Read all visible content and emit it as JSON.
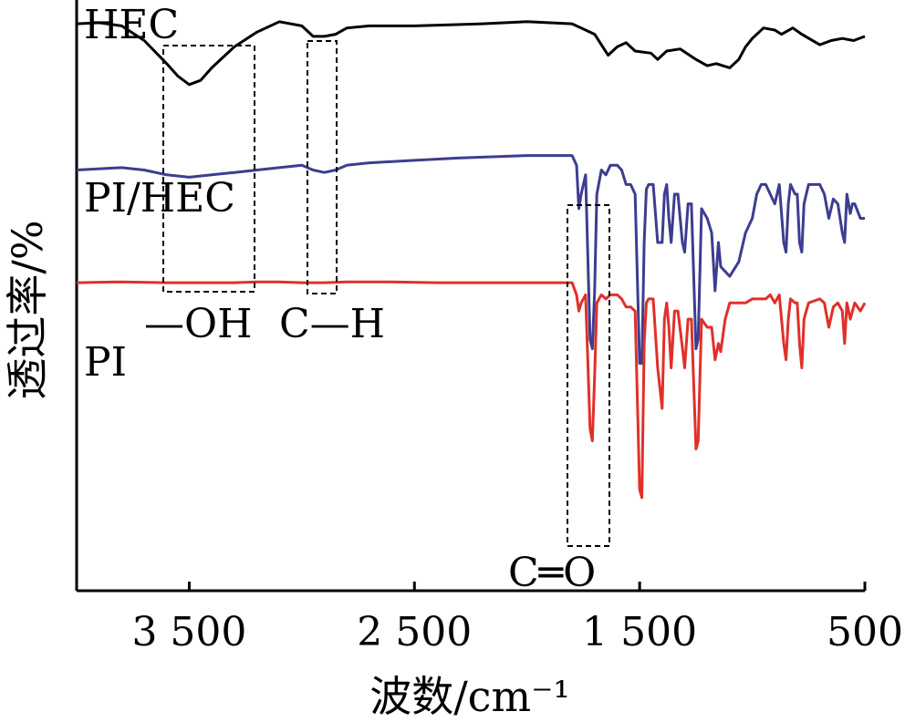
{
  "chart_data": {
    "type": "line",
    "xlabel": "波数/cm⁻¹",
    "ylabel": "透过率/%",
    "x_range": [
      4000,
      500
    ],
    "x_reversed": true,
    "grid": false,
    "x_ticks": [
      3500,
      2500,
      1500,
      500
    ],
    "x_tick_labels": [
      "3 500",
      "2 500",
      "1 500",
      "500"
    ],
    "y_units": "offset transmittance (no scale printed)",
    "series": [
      {
        "name": "HEC",
        "color": "#000000",
        "points": [
          [
            4000,
            93
          ],
          [
            3900,
            93.5
          ],
          [
            3800,
            92
          ],
          [
            3700,
            85
          ],
          [
            3600,
            74
          ],
          [
            3550,
            68
          ],
          [
            3500,
            64
          ],
          [
            3450,
            66
          ],
          [
            3400,
            72
          ],
          [
            3300,
            82
          ],
          [
            3200,
            89
          ],
          [
            3100,
            94
          ],
          [
            3000,
            92
          ],
          [
            2950,
            87
          ],
          [
            2900,
            87
          ],
          [
            2850,
            88
          ],
          [
            2800,
            91
          ],
          [
            2700,
            92
          ],
          [
            2500,
            92
          ],
          [
            2200,
            93
          ],
          [
            2000,
            94
          ],
          [
            1800,
            93
          ],
          [
            1700,
            88
          ],
          [
            1640,
            78
          ],
          [
            1600,
            82
          ],
          [
            1560,
            84
          ],
          [
            1520,
            80
          ],
          [
            1450,
            79
          ],
          [
            1420,
            76
          ],
          [
            1380,
            80
          ],
          [
            1320,
            81
          ],
          [
            1250,
            76
          ],
          [
            1200,
            73
          ],
          [
            1160,
            74
          ],
          [
            1100,
            72
          ],
          [
            1060,
            76
          ],
          [
            1030,
            82
          ],
          [
            1000,
            86
          ],
          [
            950,
            91
          ],
          [
            900,
            90
          ],
          [
            870,
            88
          ],
          [
            820,
            91
          ],
          [
            780,
            88
          ],
          [
            700,
            83
          ],
          [
            650,
            85
          ],
          [
            600,
            86
          ],
          [
            550,
            85
          ],
          [
            500,
            87
          ]
        ]
      },
      {
        "name": "PI/HEC",
        "color": "#3d3d91",
        "points": [
          [
            4000,
            95
          ],
          [
            3800,
            95.5
          ],
          [
            3700,
            95
          ],
          [
            3600,
            94
          ],
          [
            3500,
            93.5
          ],
          [
            3400,
            94
          ],
          [
            3300,
            94.5
          ],
          [
            3200,
            95
          ],
          [
            3100,
            95.5
          ],
          [
            3000,
            96
          ],
          [
            2950,
            95
          ],
          [
            2900,
            94.5
          ],
          [
            2850,
            95
          ],
          [
            2800,
            96
          ],
          [
            2700,
            96.5
          ],
          [
            2500,
            97
          ],
          [
            2300,
            97.5
          ],
          [
            2000,
            98
          ],
          [
            1800,
            98
          ],
          [
            1780,
            96
          ],
          [
            1770,
            87
          ],
          [
            1760,
            90
          ],
          [
            1740,
            94
          ],
          [
            1720,
            60
          ],
          [
            1710,
            58
          ],
          [
            1700,
            70
          ],
          [
            1690,
            90
          ],
          [
            1670,
            95
          ],
          [
            1650,
            94
          ],
          [
            1630,
            96
          ],
          [
            1600,
            96
          ],
          [
            1580,
            95
          ],
          [
            1560,
            92
          ],
          [
            1540,
            92
          ],
          [
            1520,
            90
          ],
          [
            1500,
            55
          ],
          [
            1490,
            55
          ],
          [
            1480,
            80
          ],
          [
            1470,
            91
          ],
          [
            1460,
            92
          ],
          [
            1440,
            92
          ],
          [
            1420,
            80
          ],
          [
            1400,
            80
          ],
          [
            1390,
            90
          ],
          [
            1380,
            92
          ],
          [
            1370,
            85
          ],
          [
            1360,
            80
          ],
          [
            1345,
            90
          ],
          [
            1330,
            90
          ],
          [
            1310,
            80
          ],
          [
            1300,
            78
          ],
          [
            1285,
            88
          ],
          [
            1270,
            88
          ],
          [
            1250,
            58
          ],
          [
            1240,
            60
          ],
          [
            1225,
            87
          ],
          [
            1200,
            85
          ],
          [
            1180,
            82
          ],
          [
            1165,
            70
          ],
          [
            1150,
            80
          ],
          [
            1140,
            75
          ],
          [
            1120,
            74
          ],
          [
            1100,
            73
          ],
          [
            1060,
            76
          ],
          [
            1030,
            82
          ],
          [
            1000,
            85
          ],
          [
            980,
            90
          ],
          [
            960,
            92
          ],
          [
            940,
            92
          ],
          [
            920,
            90
          ],
          [
            900,
            88
          ],
          [
            880,
            92
          ],
          [
            860,
            80
          ],
          [
            850,
            78
          ],
          [
            840,
            88
          ],
          [
            830,
            92
          ],
          [
            810,
            90
          ],
          [
            800,
            90
          ],
          [
            790,
            80
          ],
          [
            780,
            78
          ],
          [
            770,
            88
          ],
          [
            750,
            92
          ],
          [
            700,
            92
          ],
          [
            680,
            90
          ],
          [
            660,
            85
          ],
          [
            640,
            89
          ],
          [
            620,
            88
          ],
          [
            600,
            82
          ],
          [
            590,
            80
          ],
          [
            580,
            90
          ],
          [
            565,
            86
          ],
          [
            555,
            88
          ],
          [
            545,
            88
          ],
          [
            520,
            85
          ],
          [
            500,
            85
          ]
        ]
      },
      {
        "name": "PI",
        "color": "#e0302a",
        "points": [
          [
            4000,
            91
          ],
          [
            3800,
            91.2
          ],
          [
            3600,
            91
          ],
          [
            3500,
            91
          ],
          [
            3400,
            91
          ],
          [
            3300,
            91
          ],
          [
            3200,
            91.2
          ],
          [
            3100,
            91.2
          ],
          [
            3000,
            91
          ],
          [
            2900,
            91
          ],
          [
            2800,
            91.2
          ],
          [
            2600,
            91.2
          ],
          [
            2400,
            91
          ],
          [
            2200,
            91
          ],
          [
            2000,
            91
          ],
          [
            1800,
            91
          ],
          [
            1780,
            88
          ],
          [
            1770,
            84
          ],
          [
            1760,
            86
          ],
          [
            1740,
            88
          ],
          [
            1720,
            55
          ],
          [
            1710,
            52
          ],
          [
            1700,
            68
          ],
          [
            1690,
            86
          ],
          [
            1670,
            88
          ],
          [
            1650,
            87
          ],
          [
            1630,
            88
          ],
          [
            1600,
            88
          ],
          [
            1580,
            87
          ],
          [
            1560,
            85
          ],
          [
            1540,
            85
          ],
          [
            1520,
            84
          ],
          [
            1500,
            40
          ],
          [
            1490,
            38
          ],
          [
            1480,
            76
          ],
          [
            1470,
            86
          ],
          [
            1460,
            87
          ],
          [
            1440,
            87
          ],
          [
            1420,
            70
          ],
          [
            1400,
            60
          ],
          [
            1390,
            82
          ],
          [
            1380,
            86
          ],
          [
            1370,
            80
          ],
          [
            1360,
            70
          ],
          [
            1345,
            84
          ],
          [
            1330,
            84
          ],
          [
            1310,
            75
          ],
          [
            1300,
            70
          ],
          [
            1285,
            82
          ],
          [
            1270,
            82
          ],
          [
            1250,
            50
          ],
          [
            1240,
            52
          ],
          [
            1225,
            82
          ],
          [
            1200,
            80
          ],
          [
            1180,
            80
          ],
          [
            1165,
            72
          ],
          [
            1150,
            76
          ],
          [
            1140,
            74
          ],
          [
            1120,
            82
          ],
          [
            1100,
            86
          ],
          [
            1060,
            86
          ],
          [
            1030,
            86
          ],
          [
            1000,
            87
          ],
          [
            980,
            87
          ],
          [
            960,
            87
          ],
          [
            940,
            87
          ],
          [
            920,
            88
          ],
          [
            900,
            86
          ],
          [
            880,
            88
          ],
          [
            860,
            76
          ],
          [
            850,
            72
          ],
          [
            840,
            82
          ],
          [
            830,
            87
          ],
          [
            810,
            86
          ],
          [
            800,
            86
          ],
          [
            790,
            76
          ],
          [
            780,
            70
          ],
          [
            770,
            82
          ],
          [
            750,
            86
          ],
          [
            700,
            87
          ],
          [
            680,
            86
          ],
          [
            660,
            80
          ],
          [
            640,
            85
          ],
          [
            620,
            86
          ],
          [
            600,
            84
          ],
          [
            590,
            76
          ],
          [
            580,
            86
          ],
          [
            565,
            82
          ],
          [
            555,
            84
          ],
          [
            545,
            86
          ],
          [
            520,
            84
          ],
          [
            500,
            86
          ]
        ]
      }
    ],
    "annotations": [
      "—OH",
      "C—H",
      "C═O"
    ]
  }
}
